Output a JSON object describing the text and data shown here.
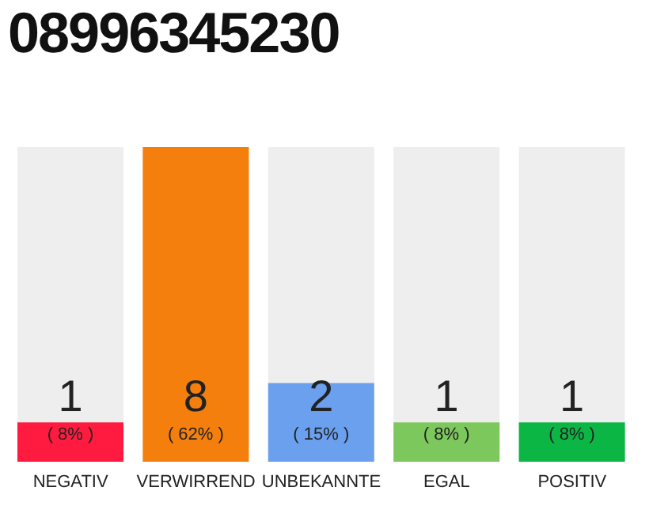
{
  "chart_data": {
    "type": "bar",
    "title": "08996345230",
    "categories": [
      "NEGATIV",
      "VERWIRREND",
      "UNBEKANNTE",
      "EGAL",
      "POSITIV"
    ],
    "values": [
      1,
      8,
      2,
      1,
      1
    ],
    "colors": [
      "#ff1a40",
      "#f47f0c",
      "#6aa0ee",
      "#7cc85c",
      "#0cb644"
    ],
    "data_labels": true,
    "annotations": [
      "( 8% )",
      "( 62% )",
      "( 15% )",
      "( 8% )",
      "( 8% )"
    ]
  }
}
